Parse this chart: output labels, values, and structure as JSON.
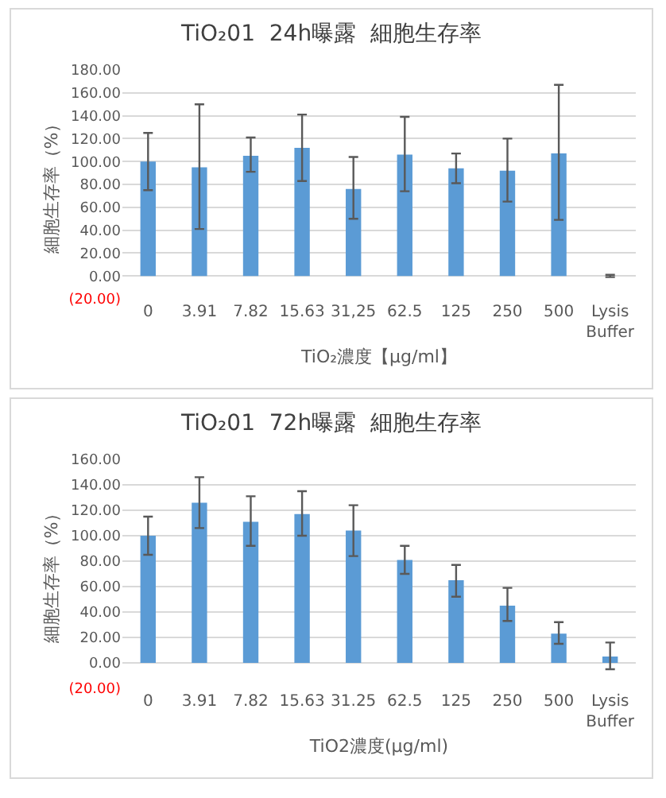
{
  "chart_data": [
    {
      "type": "bar",
      "title": "TiO₂01  24h曝露  細胞生存率",
      "xlabel": "TiO₂濃度【μg/ml】",
      "ylabel": "細胞生存率（%）",
      "categories": [
        "0",
        "3.91",
        "7.82",
        "15.63",
        "31,25",
        "62.5",
        "125",
        "250",
        "500",
        "Lysis Buffer"
      ],
      "series": [
        {
          "color": "#5b9bd5",
          "values": [
            100,
            95,
            105,
            112,
            76,
            106,
            94,
            92,
            107,
            0
          ],
          "errors": [
            [
              75,
              125
            ],
            [
              41,
              150
            ],
            [
              91,
              121
            ],
            [
              83,
              141
            ],
            [
              50,
              104
            ],
            [
              74,
              139
            ],
            [
              81,
              107
            ],
            [
              65,
              120
            ],
            [
              49,
              167
            ],
            [
              -1,
              1
            ]
          ]
        }
      ],
      "ylim": [
        -20,
        180
      ],
      "yticks": [
        {
          "value": -20,
          "label": "(20.00)"
        },
        {
          "value": 0,
          "label": "0.00"
        },
        {
          "value": 20,
          "label": "20.00"
        },
        {
          "value": 40,
          "label": "40.00"
        },
        {
          "value": 60,
          "label": "60.00"
        },
        {
          "value": 80,
          "label": "80.00"
        },
        {
          "value": 100,
          "label": "100.00"
        },
        {
          "value": 120,
          "label": "120.00"
        },
        {
          "value": 140,
          "label": "140.00"
        },
        {
          "value": 160,
          "label": "160.00"
        },
        {
          "value": 180,
          "label": "180.00"
        }
      ],
      "grid": "y"
    },
    {
      "type": "bar",
      "title": "TiO₂01  72h曝露  細胞生存率",
      "xlabel": "TiO2濃度(μg/ml)",
      "ylabel": "細胞生存率（%）",
      "categories": [
        "0",
        "3.91",
        "7.82",
        "15.63",
        "31.25",
        "62.5",
        "125",
        "250",
        "500",
        "Lysis Buffer"
      ],
      "series": [
        {
          "color": "#5b9bd5",
          "values": [
            100,
            126,
            111,
            117,
            104,
            81,
            65,
            45,
            23,
            5
          ],
          "errors": [
            [
              85,
              115
            ],
            [
              106,
              146
            ],
            [
              92,
              131
            ],
            [
              100,
              135
            ],
            [
              84,
              124
            ],
            [
              70,
              92
            ],
            [
              52,
              77
            ],
            [
              33,
              59
            ],
            [
              15,
              32
            ],
            [
              -5,
              16
            ]
          ]
        }
      ],
      "ylim": [
        -20,
        160
      ],
      "yticks": [
        {
          "value": -20,
          "label": "(20.00)"
        },
        {
          "value": 0,
          "label": "0.00"
        },
        {
          "value": 20,
          "label": "20.00"
        },
        {
          "value": 40,
          "label": "40.00"
        },
        {
          "value": 60,
          "label": "60.00"
        },
        {
          "value": 80,
          "label": "80.00"
        },
        {
          "value": 100,
          "label": "100.00"
        },
        {
          "value": 120,
          "label": "120.00"
        },
        {
          "value": 140,
          "label": "140.00"
        },
        {
          "value": 160,
          "label": "160.00"
        }
      ],
      "grid": "y"
    }
  ]
}
